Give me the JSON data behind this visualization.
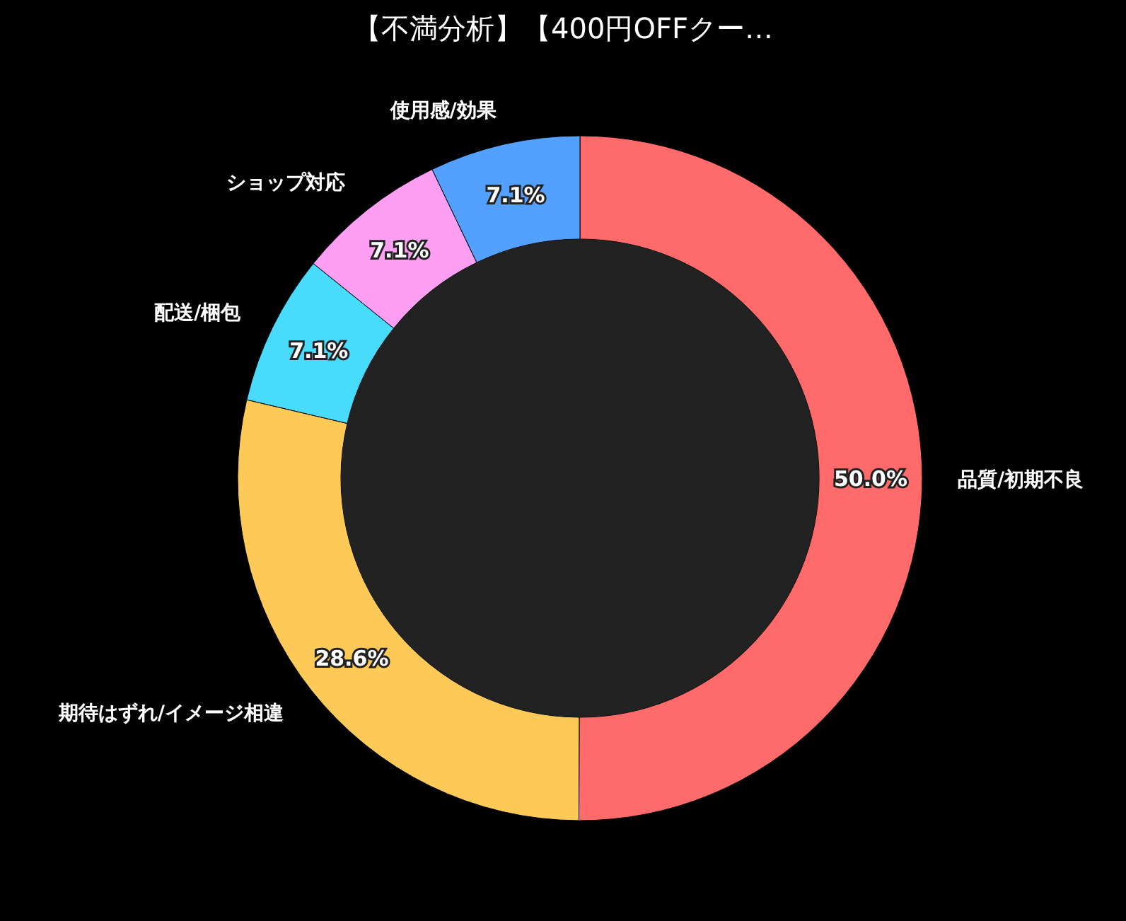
{
  "chart_data": {
    "type": "donut",
    "title": "【不満分析】【400円OFFクー…",
    "categories": [
      "品質/初期不良",
      "期待はずれ/イメージ相違",
      "配送/梱包",
      "ショップ対応",
      "使用感/効果"
    ],
    "values": [
      50.0,
      28.6,
      7.1,
      7.1,
      7.1
    ],
    "colors": [
      "#ff6b6b",
      "#feca57",
      "#48dbfb",
      "#ff9ff3",
      "#54a0ff"
    ],
    "value_labels": [
      "50.0%",
      "28.6%",
      "7.1%",
      "7.1%",
      "7.1%"
    ]
  }
}
